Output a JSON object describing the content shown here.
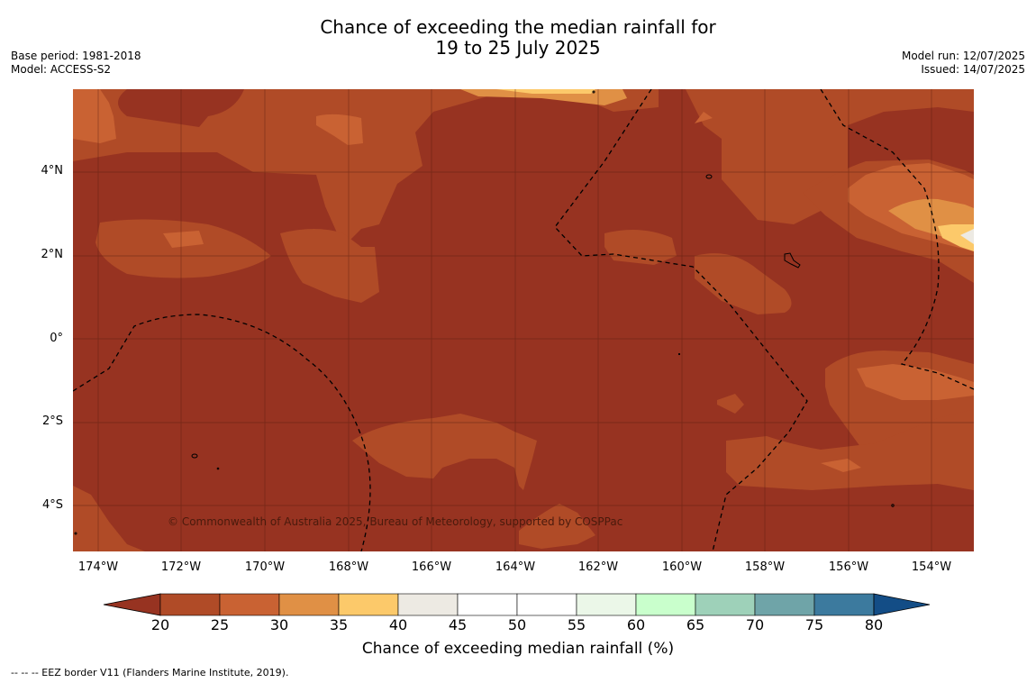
{
  "title": {
    "line1": "Chance of exceeding the median rainfall for",
    "line2": "19 to 25 July 2025"
  },
  "meta_left": {
    "base_period": "Base period: 1981-2018",
    "model": "Model: ACCESS-S2"
  },
  "meta_right": {
    "model_run": "Model run: 12/07/2025",
    "issued": "Issued: 14/07/2025"
  },
  "map": {
    "lat_labels": [
      "4°N",
      "2°N",
      "0°",
      "2°S",
      "4°S"
    ],
    "lon_labels": [
      "174°W",
      "172°W",
      "170°W",
      "168°W",
      "166°W",
      "164°W",
      "162°W",
      "160°W",
      "158°W",
      "156°W",
      "154°W"
    ],
    "credit": "© Commonwealth of Australia 2025, Bureau of Meteorology, supported by COSPPac",
    "colors": {
      "c20_25": "#973321",
      "c25_30": "#b04b27",
      "c30_35": "#c96233",
      "c35_40": "#e09045",
      "c40_45": "#fcc96a",
      "c45_50": "#edeae3"
    }
  },
  "colorbar": {
    "ticks": [
      "20",
      "25",
      "30",
      "35",
      "40",
      "45",
      "50",
      "55",
      "60",
      "65",
      "70",
      "75",
      "80"
    ],
    "label": "Chance of exceeding median rainfall (%)",
    "colors": [
      "#973321",
      "#b04b27",
      "#c96233",
      "#e09045",
      "#fcc96a",
      "#edeae3",
      "#ffffff",
      "#ffffff",
      "#ebf7e8",
      "#c9ffcc",
      "#9ed1b9",
      "#6fa4a8",
      "#3c7a9e",
      "#134d86"
    ]
  },
  "footnote": "--  --  -- EEZ border V11 (Flanders Marine Institute, 2019)."
}
